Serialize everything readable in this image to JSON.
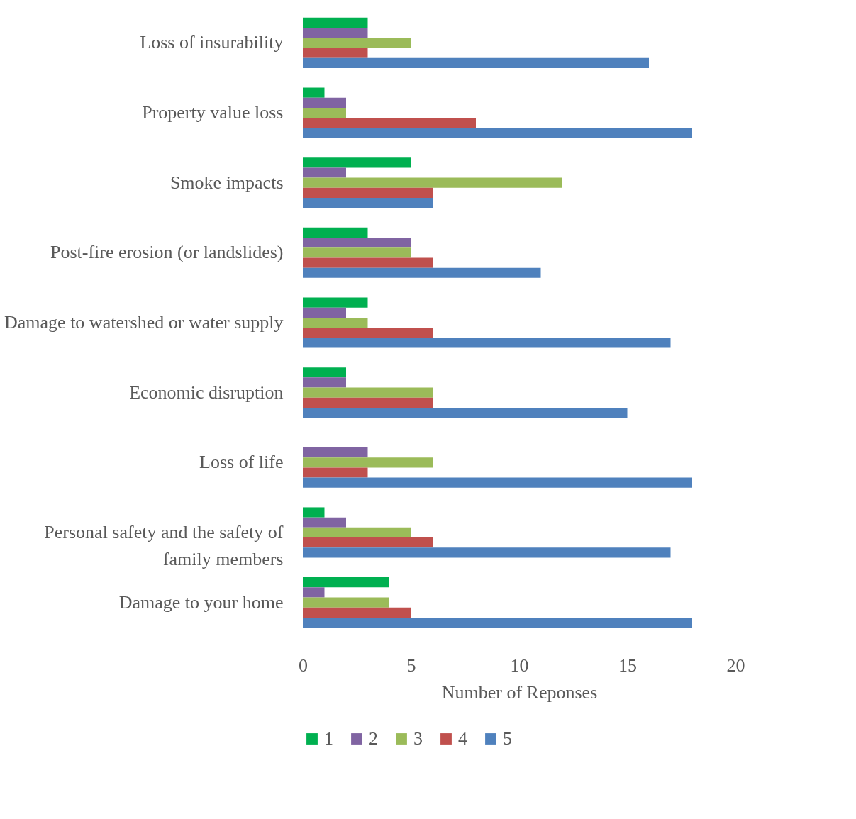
{
  "chart_data": {
    "type": "bar",
    "orientation": "horizontal",
    "xlabel": "Number of Reponses",
    "categories": [
      "Loss of insurability",
      "Property value loss",
      "Smoke impacts",
      "Post-fire erosion (or landslides)",
      "Damage to watershed or water supply",
      "Economic disruption",
      "Loss of life",
      "Personal safety and the safety of family members",
      "Damage to your home"
    ],
    "series": [
      {
        "name": "1",
        "color": "#00b050",
        "values": [
          3,
          1,
          5,
          3,
          3,
          2,
          0,
          1,
          4
        ]
      },
      {
        "name": "2",
        "color": "#8064a2",
        "values": [
          3,
          2,
          2,
          5,
          2,
          2,
          3,
          2,
          1
        ]
      },
      {
        "name": "3",
        "color": "#9bbb59",
        "values": [
          5,
          2,
          12,
          5,
          3,
          6,
          6,
          5,
          4
        ]
      },
      {
        "name": "4",
        "color": "#c0504d",
        "values": [
          3,
          8,
          6,
          6,
          6,
          6,
          3,
          6,
          5
        ]
      },
      {
        "name": "5",
        "color": "#4f81bd",
        "values": [
          16,
          18,
          6,
          11,
          17,
          15,
          18,
          17,
          18
        ]
      }
    ],
    "xlim": [
      0,
      20
    ],
    "xticks": [
      0,
      5,
      10,
      15,
      20
    ],
    "grid": false,
    "legend": "bottom"
  }
}
